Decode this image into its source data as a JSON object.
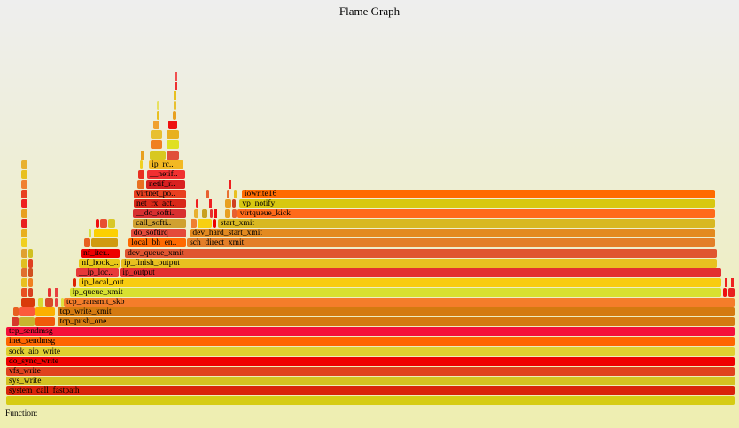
{
  "chart_data": {
    "type": "flame-graph",
    "title": "Flame Graph",
    "details_label": "Function:",
    "units": "percent of samples",
    "frames": [
      {
        "depth": 0,
        "start": 0,
        "end": 100,
        "name": "",
        "color": "#d6cc14"
      },
      {
        "depth": 1,
        "start": 0,
        "end": 100,
        "name": "system_call_fastpath",
        "color": "#d9230a"
      },
      {
        "depth": 2,
        "start": 0,
        "end": 100,
        "name": "sys_write",
        "color": "#d4c222"
      },
      {
        "depth": 3,
        "start": 0,
        "end": 100,
        "name": "vfs_write",
        "color": "#e0421e"
      },
      {
        "depth": 4,
        "start": 0,
        "end": 100,
        "name": "do_sync_write",
        "color": "#ef0000"
      },
      {
        "depth": 5,
        "start": 0,
        "end": 100,
        "name": "sock_aio_write",
        "color": "#e0d030"
      },
      {
        "depth": 6,
        "start": 0,
        "end": 100,
        "name": "inet_sendmsg",
        "color": "#ff6600"
      },
      {
        "depth": 7,
        "start": 0,
        "end": 100,
        "name": "tcp_sendmsg",
        "color": "#f5103a"
      },
      {
        "depth": 8,
        "start": 0.7,
        "end": 1.8,
        "name": "",
        "color": "#d63a2a"
      },
      {
        "depth": 8,
        "start": 1.8,
        "end": 4.0,
        "name": "",
        "color": "#c8b52e"
      },
      {
        "depth": 8,
        "start": 4.0,
        "end": 6.8,
        "name": "",
        "color": "#f05a0a"
      },
      {
        "depth": 8,
        "start": 7.0,
        "end": 100,
        "name": "tcp_push_one",
        "color": "#d47a10"
      },
      {
        "depth": 9,
        "start": 1.0,
        "end": 1.8,
        "name": "",
        "color": "#e86020"
      },
      {
        "depth": 9,
        "start": 1.8,
        "end": 4.0,
        "name": "",
        "color": "#fc5a3c"
      },
      {
        "depth": 9,
        "start": 4.0,
        "end": 6.8,
        "name": "",
        "color": "#fcb000"
      },
      {
        "depth": 9,
        "start": 7.0,
        "end": 100,
        "name": "tcp_write_xmit",
        "color": "#d47a10"
      },
      {
        "depth": 10,
        "start": 2.1,
        "end": 4.0,
        "name": "",
        "color": "#d93a0a"
      },
      {
        "depth": 10,
        "start": 4.4,
        "end": 5.2,
        "name": "",
        "color": "#d8d830"
      },
      {
        "depth": 10,
        "start": 5.3,
        "end": 6.6,
        "name": "",
        "color": "#d84a28"
      },
      {
        "depth": 10,
        "start": 6.7,
        "end": 7.1,
        "name": "",
        "color": "#e84040"
      },
      {
        "depth": 10,
        "start": 7.5,
        "end": 7.9,
        "name": "",
        "color": "#e0e040"
      },
      {
        "depth": 10,
        "start": 7.9,
        "end": 100,
        "name": "tcp_transmit_skb",
        "color": "#f57d2a"
      },
      {
        "depth": 11,
        "start": 2.1,
        "end": 3.0,
        "name": "",
        "color": "#e85020"
      },
      {
        "depth": 11,
        "start": 3.0,
        "end": 3.8,
        "name": "",
        "color": "#d84020"
      },
      {
        "depth": 11,
        "start": 5.7,
        "end": 6.1,
        "name": "",
        "color": "#e83030"
      },
      {
        "depth": 11,
        "start": 6.7,
        "end": 7.0,
        "name": "",
        "color": "#e84040"
      },
      {
        "depth": 11,
        "start": 8.7,
        "end": 98.2,
        "name": "ip_queue_xmit",
        "color": "#d8e030"
      },
      {
        "depth": 11,
        "start": 98.3,
        "end": 98.9,
        "name": "",
        "color": "#ee1010"
      },
      {
        "depth": 11,
        "start": 99.0,
        "end": 100,
        "name": "",
        "color": "#e82020"
      },
      {
        "depth": 12,
        "start": 2.1,
        "end": 3.0,
        "name": "",
        "color": "#e8c020"
      },
      {
        "depth": 12,
        "start": 3.0,
        "end": 3.8,
        "name": "",
        "color": "#f08020"
      },
      {
        "depth": 12,
        "start": 9.1,
        "end": 9.7,
        "name": "",
        "color": "#dd2200"
      },
      {
        "depth": 12,
        "start": 10.0,
        "end": 98.2,
        "name": "ip_local_out",
        "color": "#f8cc10"
      },
      {
        "depth": 12,
        "start": 98.5,
        "end": 98.8,
        "name": "",
        "color": "#ee2020"
      },
      {
        "depth": 12,
        "start": 99.4,
        "end": 99.7,
        "name": "",
        "color": "#ee2020"
      },
      {
        "depth": 13,
        "start": 2.1,
        "end": 3.0,
        "name": "",
        "color": "#e07030"
      },
      {
        "depth": 13,
        "start": 3.0,
        "end": 3.8,
        "name": "",
        "color": "#d05020"
      },
      {
        "depth": 13,
        "start": 9.6,
        "end": 15.6,
        "name": "__ip_loc..",
        "color": "#e83a3a"
      },
      {
        "depth": 13,
        "start": 15.6,
        "end": 98.2,
        "name": "ip_output",
        "color": "#e33030"
      },
      {
        "depth": 14,
        "start": 2.1,
        "end": 3.0,
        "name": "",
        "color": "#e0c020"
      },
      {
        "depth": 14,
        "start": 3.0,
        "end": 3.8,
        "name": "",
        "color": "#e04020"
      },
      {
        "depth": 14,
        "start": 10.0,
        "end": 15.7,
        "name": "nf_hook_..",
        "color": "#e8c818"
      },
      {
        "depth": 14,
        "start": 15.8,
        "end": 97.6,
        "name": "ip_finish_output",
        "color": "#e8c020"
      },
      {
        "depth": 15,
        "start": 2.1,
        "end": 3.0,
        "name": "",
        "color": "#e0a030"
      },
      {
        "depth": 15,
        "start": 3.0,
        "end": 3.8,
        "name": "",
        "color": "#d0c020"
      },
      {
        "depth": 15,
        "start": 10.2,
        "end": 15.7,
        "name": "nf_iter..",
        "color": "#ee0000"
      },
      {
        "depth": 15,
        "start": 16.3,
        "end": 97.6,
        "name": "dev_queue_xmit",
        "color": "#e05530"
      },
      {
        "depth": 16,
        "start": 2.1,
        "end": 3.0,
        "name": "",
        "color": "#f0d020"
      },
      {
        "depth": 16,
        "start": 10.7,
        "end": 11.7,
        "name": "",
        "color": "#e86020"
      },
      {
        "depth": 16,
        "start": 11.7,
        "end": 15.4,
        "name": "",
        "color": "#d09a10"
      },
      {
        "depth": 16,
        "start": 16.8,
        "end": 24.8,
        "name": "local_bh_en..",
        "color": "#ff6a00"
      },
      {
        "depth": 16,
        "start": 24.8,
        "end": 97.3,
        "name": "sch_direct_xmit",
        "color": "#e37f28"
      },
      {
        "depth": 17,
        "start": 2.1,
        "end": 3.0,
        "name": "",
        "color": "#e8b020"
      },
      {
        "depth": 17,
        "start": 11.3,
        "end": 11.8,
        "name": "",
        "color": "#d8e040"
      },
      {
        "depth": 17,
        "start": 12.0,
        "end": 15.4,
        "name": "",
        "color": "#fcd000"
      },
      {
        "depth": 17,
        "start": 17.1,
        "end": 24.8,
        "name": "do_softirq",
        "color": "#e44a3a"
      },
      {
        "depth": 17,
        "start": 25.2,
        "end": 97.3,
        "name": "dev_hard_start_xmit",
        "color": "#e38a20"
      },
      {
        "depth": 18,
        "start": 2.1,
        "end": 3.0,
        "name": "",
        "color": "#e82020"
      },
      {
        "depth": 18,
        "start": 12.3,
        "end": 12.9,
        "name": "",
        "color": "#ee1010"
      },
      {
        "depth": 18,
        "start": 12.9,
        "end": 14.0,
        "name": "",
        "color": "#e85030"
      },
      {
        "depth": 18,
        "start": 14.0,
        "end": 15.1,
        "name": "",
        "color": "#d8c828"
      },
      {
        "depth": 18,
        "start": 17.4,
        "end": 24.8,
        "name": "call_softi..",
        "color": "#d0a030"
      },
      {
        "depth": 18,
        "start": 25.3,
        "end": 26.3,
        "name": "",
        "color": "#f08030"
      },
      {
        "depth": 18,
        "start": 26.3,
        "end": 28.3,
        "name": "",
        "color": "#f8d010"
      },
      {
        "depth": 18,
        "start": 28.3,
        "end": 28.9,
        "name": "",
        "color": "#ee0000"
      },
      {
        "depth": 18,
        "start": 29.0,
        "end": 97.3,
        "name": "start_xmit",
        "color": "#d8b822"
      },
      {
        "depth": 19,
        "start": 2.1,
        "end": 3.0,
        "name": "",
        "color": "#e8a020"
      },
      {
        "depth": 19,
        "start": 17.4,
        "end": 24.8,
        "name": "__do_softi..",
        "color": "#d83030"
      },
      {
        "depth": 19,
        "start": 25.8,
        "end": 26.5,
        "name": "",
        "color": "#e8b030"
      },
      {
        "depth": 19,
        "start": 26.8,
        "end": 27.7,
        "name": "",
        "color": "#c8a020"
      },
      {
        "depth": 19,
        "start": 27.9,
        "end": 28.4,
        "name": "",
        "color": "#e83030"
      },
      {
        "depth": 19,
        "start": 28.6,
        "end": 28.9,
        "name": "",
        "color": "#ee1010"
      },
      {
        "depth": 19,
        "start": 30.0,
        "end": 30.9,
        "name": "",
        "color": "#e8a020"
      },
      {
        "depth": 19,
        "start": 31.0,
        "end": 31.7,
        "name": "",
        "color": "#e86030"
      },
      {
        "depth": 19,
        "start": 31.7,
        "end": 97.3,
        "name": "virtqueue_kick",
        "color": "#ff6a1a"
      },
      {
        "depth": 20,
        "start": 2.1,
        "end": 3.0,
        "name": "",
        "color": "#ee2020"
      },
      {
        "depth": 20,
        "start": 17.5,
        "end": 24.8,
        "name": "net_rx_act..",
        "color": "#d82818"
      },
      {
        "depth": 20,
        "start": 26.0,
        "end": 26.5,
        "name": "",
        "color": "#ee2020"
      },
      {
        "depth": 20,
        "start": 27.8,
        "end": 28.1,
        "name": "",
        "color": "#ee2020"
      },
      {
        "depth": 20,
        "start": 30.0,
        "end": 31.0,
        "name": "",
        "color": "#e8a020"
      },
      {
        "depth": 20,
        "start": 31.0,
        "end": 31.6,
        "name": "",
        "color": "#d04020"
      },
      {
        "depth": 20,
        "start": 32.0,
        "end": 97.3,
        "name": "vp_notify",
        "color": "#d8c810"
      },
      {
        "depth": 21,
        "start": 2.1,
        "end": 3.0,
        "name": "",
        "color": "#e84020"
      },
      {
        "depth": 21,
        "start": 17.5,
        "end": 24.8,
        "name": "virtnet_po..",
        "color": "#e84020"
      },
      {
        "depth": 21,
        "start": 27.5,
        "end": 28.0,
        "name": "",
        "color": "#e86030"
      },
      {
        "depth": 21,
        "start": 30.3,
        "end": 30.7,
        "name": "",
        "color": "#e87030"
      },
      {
        "depth": 21,
        "start": 31.2,
        "end": 31.6,
        "name": "",
        "color": "#e8c020"
      },
      {
        "depth": 21,
        "start": 32.3,
        "end": 97.3,
        "name": "iowrite16",
        "color": "#ff6a00"
      },
      {
        "depth": 22,
        "start": 2.1,
        "end": 3.0,
        "name": "",
        "color": "#f08030"
      },
      {
        "depth": 22,
        "start": 18.0,
        "end": 19.1,
        "name": "",
        "color": "#e87020"
      },
      {
        "depth": 22,
        "start": 19.2,
        "end": 24.7,
        "name": "netif_r..",
        "color": "#d82020"
      },
      {
        "depth": 22,
        "start": 30.5,
        "end": 30.8,
        "name": "",
        "color": "#ee2020"
      },
      {
        "depth": 23,
        "start": 2.1,
        "end": 3.0,
        "name": "",
        "color": "#e8c020"
      },
      {
        "depth": 23,
        "start": 18.1,
        "end": 19.1,
        "name": "",
        "color": "#e83020"
      },
      {
        "depth": 23,
        "start": 19.3,
        "end": 24.7,
        "name": "__netif..",
        "color": "#f03030"
      },
      {
        "depth": 24,
        "start": 2.1,
        "end": 3.0,
        "name": "",
        "color": "#e8b030"
      },
      {
        "depth": 24,
        "start": 18.3,
        "end": 18.8,
        "name": "",
        "color": "#f0d020"
      },
      {
        "depth": 24,
        "start": 19.6,
        "end": 24.4,
        "name": "ip_rc..",
        "color": "#f2b822"
      },
      {
        "depth": 25,
        "start": 18.5,
        "end": 18.8,
        "name": "",
        "color": "#e8a020"
      },
      {
        "depth": 25,
        "start": 19.7,
        "end": 22.0,
        "name": "",
        "color": "#d8c820"
      },
      {
        "depth": 25,
        "start": 22.0,
        "end": 23.8,
        "name": "",
        "color": "#e0503a"
      },
      {
        "depth": 26,
        "start": 19.8,
        "end": 21.5,
        "name": "",
        "color": "#f08020"
      },
      {
        "depth": 26,
        "start": 22.0,
        "end": 23.8,
        "name": "",
        "color": "#e0e020"
      },
      {
        "depth": 27,
        "start": 19.8,
        "end": 21.5,
        "name": "",
        "color": "#e8c030"
      },
      {
        "depth": 27,
        "start": 22.0,
        "end": 23.8,
        "name": "",
        "color": "#e8b020"
      },
      {
        "depth": 28,
        "start": 20.2,
        "end": 21.2,
        "name": "",
        "color": "#f0a030"
      },
      {
        "depth": 28,
        "start": 22.2,
        "end": 23.6,
        "name": "",
        "color": "#ee1010"
      },
      {
        "depth": 29,
        "start": 20.6,
        "end": 21.0,
        "name": "",
        "color": "#e8c020"
      },
      {
        "depth": 29,
        "start": 22.8,
        "end": 23.4,
        "name": "",
        "color": "#e8a020"
      },
      {
        "depth": 30,
        "start": 20.6,
        "end": 21.0,
        "name": "",
        "color": "#e8e060"
      },
      {
        "depth": 30,
        "start": 23.0,
        "end": 23.4,
        "name": "",
        "color": "#e8c030"
      },
      {
        "depth": 31,
        "start": 23.0,
        "end": 23.3,
        "name": "",
        "color": "#e8c020"
      },
      {
        "depth": 32,
        "start": 23.1,
        "end": 23.3,
        "name": "",
        "color": "#ee3030"
      },
      {
        "depth": 33,
        "start": 23.1,
        "end": 23.3,
        "name": "",
        "color": "#f05050"
      }
    ]
  }
}
